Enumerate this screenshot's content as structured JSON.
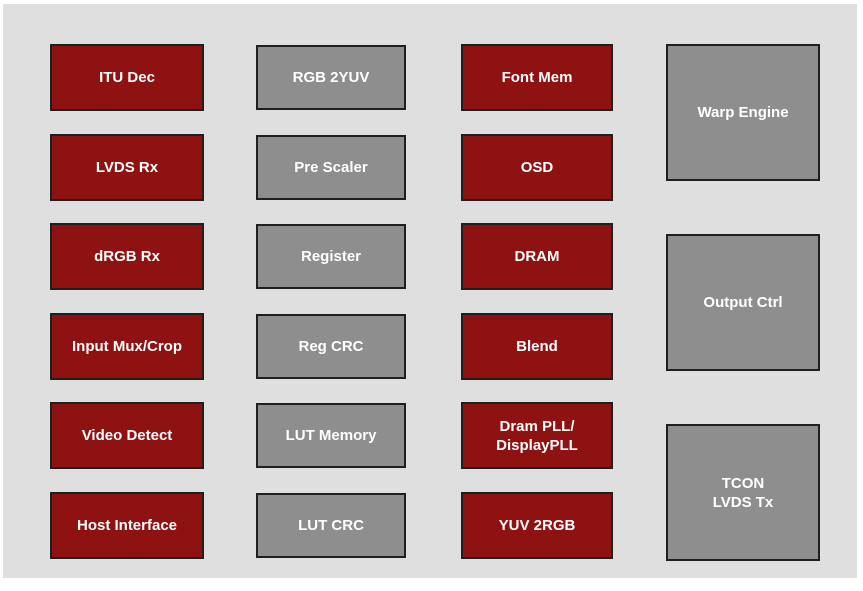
{
  "colors": {
    "page_background": "#ffffff",
    "panel_background": "#dfdfdf",
    "red_block": "#8e1212",
    "gray_block": "#8e8e8e",
    "block_border": "#1f1f1f",
    "block_text": "#ffffff"
  },
  "diagram": {
    "description": "Video processor block diagram",
    "columns": [
      {
        "style": "red",
        "blocks": [
          {
            "lines": [
              "ITU Dec"
            ]
          },
          {
            "lines": [
              "LVDS Rx"
            ]
          },
          {
            "lines": [
              "dRGB Rx"
            ]
          },
          {
            "lines": [
              "Input Mux/Crop"
            ]
          },
          {
            "lines": [
              "Video Detect"
            ]
          },
          {
            "lines": [
              "Host Interface"
            ]
          }
        ]
      },
      {
        "style": "gray",
        "blocks": [
          {
            "lines": [
              "RGB 2YUV"
            ]
          },
          {
            "lines": [
              "Pre Scaler"
            ]
          },
          {
            "lines": [
              "Register"
            ]
          },
          {
            "lines": [
              "Reg CRC"
            ]
          },
          {
            "lines": [
              "LUT Memory"
            ]
          },
          {
            "lines": [
              "LUT CRC"
            ]
          }
        ]
      },
      {
        "style": "red",
        "blocks": [
          {
            "lines": [
              "Font Mem"
            ]
          },
          {
            "lines": [
              "OSD"
            ]
          },
          {
            "lines": [
              "DRAM"
            ]
          },
          {
            "lines": [
              "Blend"
            ]
          },
          {
            "lines": [
              "Dram PLL/",
              "DisplayPLL"
            ]
          },
          {
            "lines": [
              "YUV 2RGB"
            ]
          }
        ]
      },
      {
        "style": "gray",
        "blocks": [
          {
            "lines": [
              "Warp Engine"
            ]
          },
          {
            "lines": [
              "Output Ctrl"
            ]
          },
          {
            "lines": [
              "TCON",
              "LVDS Tx"
            ]
          }
        ]
      }
    ]
  }
}
